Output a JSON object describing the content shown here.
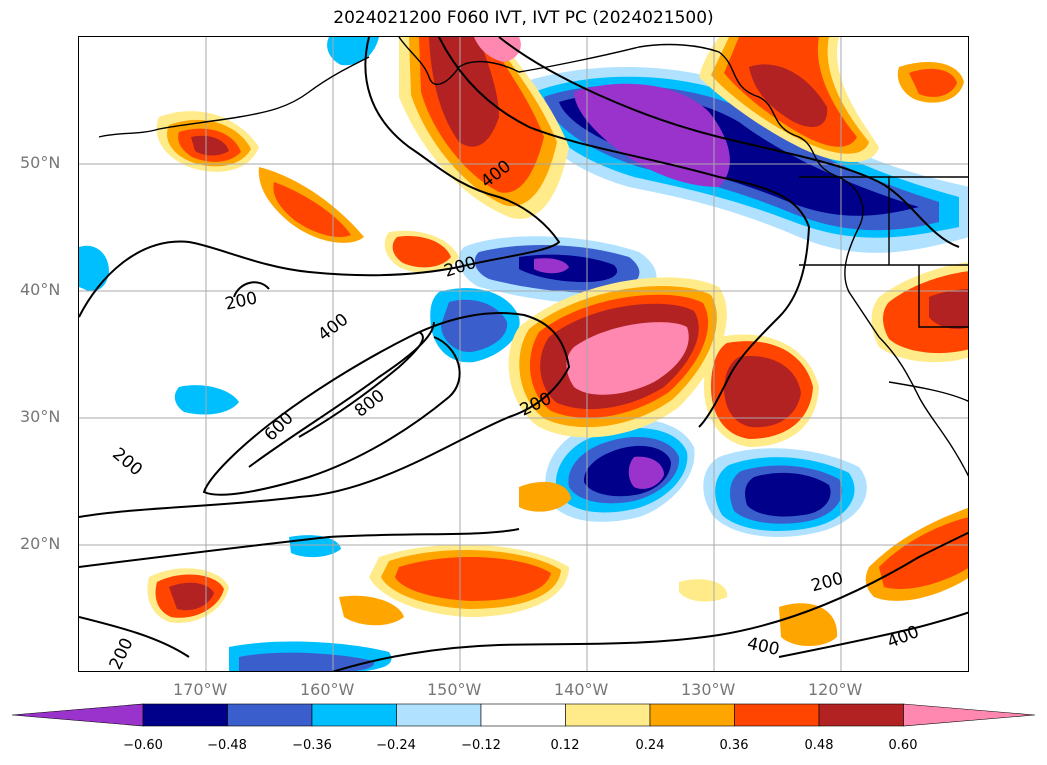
{
  "title": "2024021200 F060 IVT, IVT PC (2024021500)",
  "lat_labels": [
    "50°N",
    "40°N",
    "30°N",
    "20°N"
  ],
  "lon_labels": [
    "170°W",
    "160°W",
    "150°W",
    "140°W",
    "130°W",
    "120°W"
  ],
  "contour_labels": [
    "400",
    "200",
    "200",
    "400",
    "600",
    "800",
    "200",
    "200",
    "200",
    "200",
    "400",
    "400"
  ],
  "colorbar": {
    "ticks": [
      "−0.60",
      "−0.48",
      "−0.36",
      "−0.24",
      "−0.12",
      "0.12",
      "0.24",
      "0.36",
      "0.48",
      "0.60"
    ],
    "colors": [
      "#9933cc",
      "#00008b",
      "#3a5fcd",
      "#00bfff",
      "#b0e2ff",
      "#ffffff",
      "#ffeb8a",
      "#ffa500",
      "#ff4500",
      "#b22222",
      "#ff88b0"
    ]
  }
}
